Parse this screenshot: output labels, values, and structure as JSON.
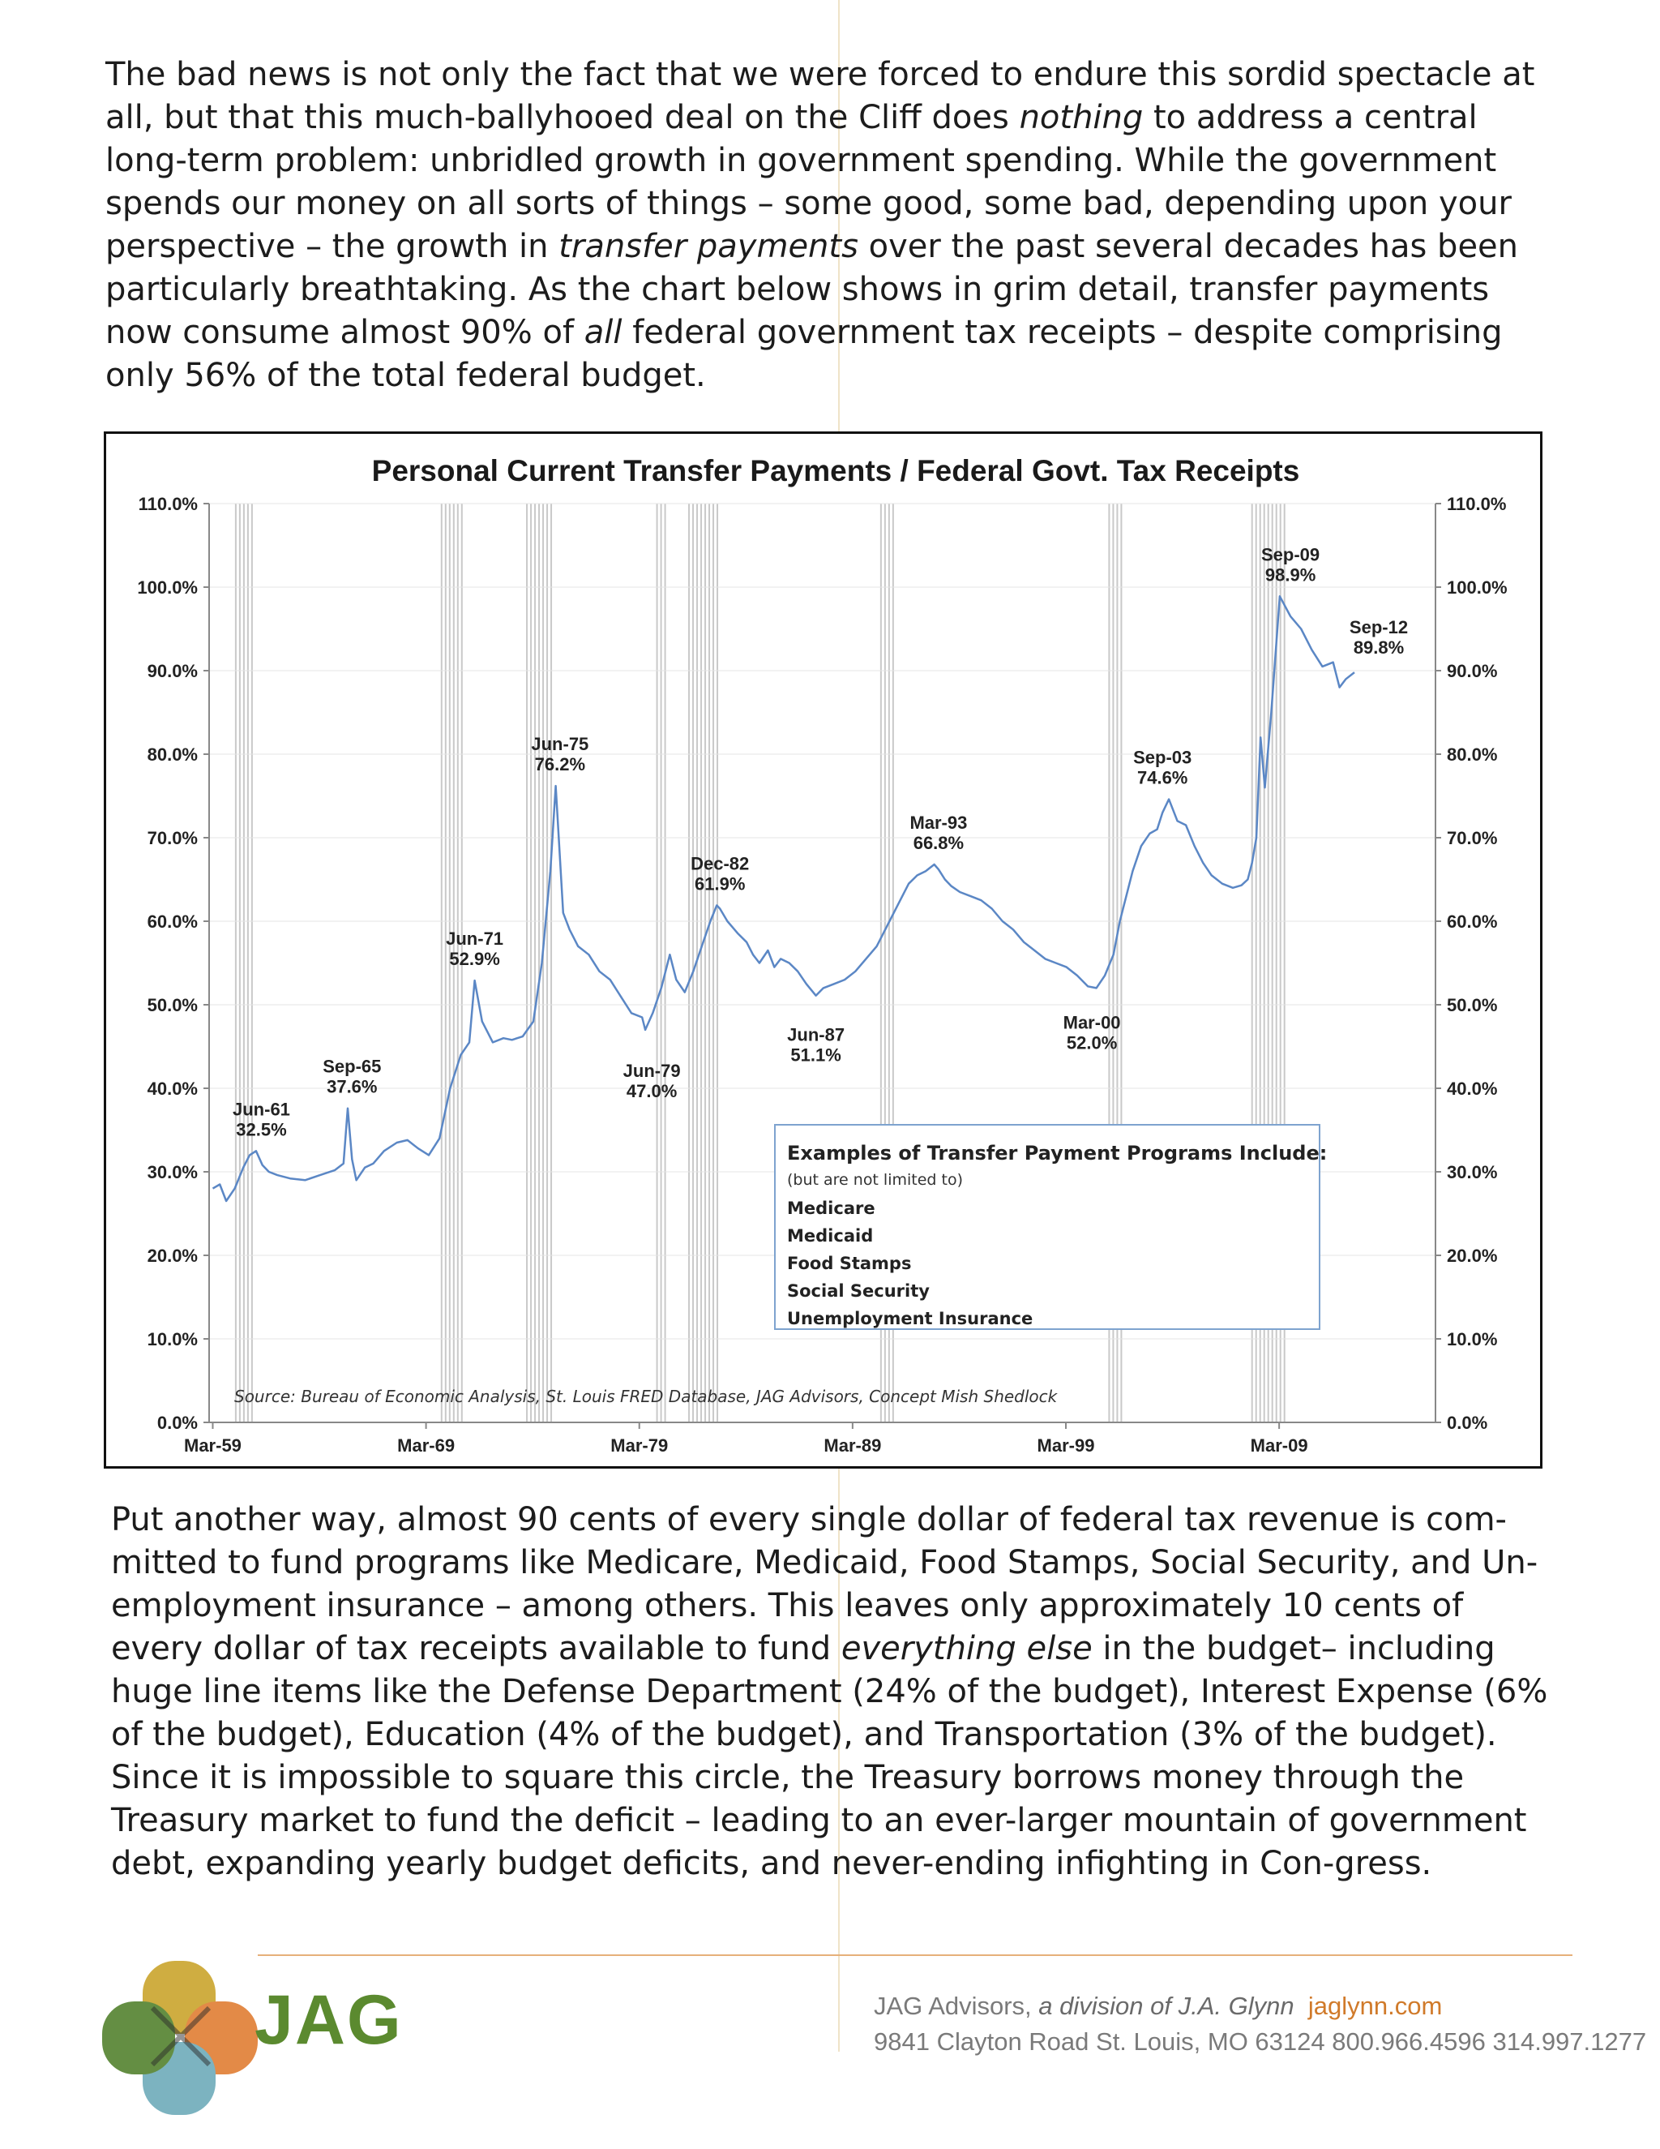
{
  "paragraph1": {
    "s1": "The bad news is not only the fact that we were forced to endure this sordid spectacle at all, but that this much-ballyhooed deal on the Cliff does ",
    "e1": "nothing",
    "s2": " to address a central long-term problem: unbridled growth in government spending.   While the government spends our money on all sorts of things – some good, some bad, depending upon your perspective – the growth in ",
    "e2": "transfer payments",
    "s3": " over the past several decades has been particularly breathtaking.  As the chart below shows in grim detail, transfer payments now consume almost 90% of ",
    "e3": "all",
    "s4": " federal government tax receipts – despite comprising only 56% of the total federal budget."
  },
  "paragraph2": {
    "s1": "Put another way, almost 90 cents of every single dollar of federal tax revenue is com-mitted to fund programs like Medicare, Medicaid, Food Stamps, Social Security, and Un-employment insurance – among others.  This leaves only approximately 10 cents of every dollar of tax receipts available to fund ",
    "e1": "everything else",
    "s2": " in the budget– including huge line items like the Defense Department (24% of the budget), Interest Expense (6% of the budget),  Education (4% of the budget),  and Transportation (3% of the budget).  Since it is impossible to square this circle, the Treasury borrows money through the Treasury market to fund the deficit – leading to an ever-larger mountain of government debt, expanding yearly budget deficits, and never-ending infighting in Con-gress."
  },
  "chart_data": {
    "type": "line",
    "title": "Personal Current Transfer Payments / Federal Govt. Tax Receipts",
    "xlabel": "",
    "ylabel": "",
    "ylim": [
      0,
      110
    ],
    "yticks": [
      "0.0%",
      "10.0%",
      "20.0%",
      "30.0%",
      "40.0%",
      "50.0%",
      "60.0%",
      "70.0%",
      "80.0%",
      "90.0%",
      "100.0%",
      "110.0%"
    ],
    "xticks": [
      {
        "label": "Mar-59",
        "x": 1959.17
      },
      {
        "label": "Mar-69",
        "x": 1969.17
      },
      {
        "label": "Mar-79",
        "x": 1979.17
      },
      {
        "label": "Mar-89",
        "x": 1989.17
      },
      {
        "label": "Mar-99",
        "x": 1999.17
      },
      {
        "label": "Mar-09",
        "x": 2009.17
      }
    ],
    "xlim": [
      1959.0,
      2016.5
    ],
    "grid": true,
    "line_color": "#5b87c5",
    "recession_color": "#c9c9c9",
    "recessions": [
      [
        1960.25,
        1961.1
      ],
      [
        1969.9,
        1970.9
      ],
      [
        1973.9,
        1975.2
      ],
      [
        1980.0,
        1980.5
      ],
      [
        1981.5,
        1982.9
      ],
      [
        1990.5,
        1991.2
      ],
      [
        2001.2,
        2001.9
      ],
      [
        2007.9,
        2009.5
      ]
    ],
    "series": [
      {
        "name": "",
        "x": [
          1959.17,
          1959.5,
          1959.8,
          1960.2,
          1960.6,
          1960.9,
          1961.2,
          1961.5,
          1961.8,
          1962.2,
          1962.8,
          1963.5,
          1964.2,
          1964.9,
          1965.3,
          1965.5,
          1965.7,
          1965.9,
          1966.3,
          1966.7,
          1967.2,
          1967.8,
          1968.3,
          1968.8,
          1969.3,
          1969.8,
          1970.3,
          1970.8,
          1971.2,
          1971.45,
          1971.8,
          1972.3,
          1972.8,
          1973.2,
          1973.7,
          1974.2,
          1974.6,
          1975.0,
          1975.25,
          1975.6,
          1975.9,
          1976.3,
          1976.8,
          1977.3,
          1977.8,
          1978.3,
          1978.8,
          1979.3,
          1979.45,
          1979.8,
          1980.2,
          1980.6,
          1980.9,
          1981.3,
          1981.7,
          1982.1,
          1982.5,
          1982.8,
          1982.95,
          1983.3,
          1983.8,
          1984.2,
          1984.5,
          1984.8,
          1985.2,
          1985.5,
          1985.8,
          1986.2,
          1986.6,
          1987.0,
          1987.45,
          1987.8,
          1988.3,
          1988.8,
          1989.3,
          1989.8,
          1990.3,
          1990.8,
          1991.3,
          1991.8,
          1992.2,
          1992.6,
          1993.0,
          1993.2,
          1993.5,
          1993.8,
          1994.2,
          1994.7,
          1995.2,
          1995.7,
          1996.2,
          1996.7,
          1997.2,
          1997.7,
          1998.2,
          1998.7,
          1999.2,
          1999.7,
          2000.2,
          2000.6,
          2001.0,
          2001.4,
          2001.7,
          2002.0,
          2002.3,
          2002.7,
          2003.1,
          2003.45,
          2003.7,
          2004.0,
          2004.4,
          2004.8,
          2005.2,
          2005.6,
          2006.0,
          2006.5,
          2007.0,
          2007.4,
          2007.7,
          2007.9,
          2008.1,
          2008.3,
          2008.5,
          2008.8,
          2009.2,
          2009.7,
          2010.2,
          2010.7,
          2011.2,
          2011.7,
          2012.0,
          2012.3,
          2012.7
        ],
        "values": [
          28.0,
          28.5,
          26.5,
          28.0,
          30.5,
          32.0,
          32.5,
          30.8,
          30.0,
          29.6,
          29.2,
          29.0,
          29.6,
          30.2,
          31.0,
          37.6,
          31.5,
          29.0,
          30.5,
          31.0,
          32.5,
          33.5,
          33.8,
          32.8,
          32.0,
          34.0,
          40.0,
          44.0,
          45.5,
          52.9,
          48.0,
          45.5,
          46.0,
          45.8,
          46.2,
          48.0,
          55.0,
          66.0,
          76.2,
          61.0,
          59.0,
          57.0,
          56.0,
          54.0,
          53.0,
          51.0,
          49.0,
          48.5,
          47.0,
          49.0,
          52.0,
          56.0,
          53.0,
          51.5,
          54.0,
          57.0,
          60.0,
          61.9,
          61.5,
          60.0,
          58.5,
          57.5,
          56.0,
          55.0,
          56.5,
          54.5,
          55.5,
          55.0,
          54.0,
          52.5,
          51.1,
          52.0,
          52.5,
          53.0,
          54.0,
          55.5,
          57.0,
          59.5,
          62.0,
          64.5,
          65.5,
          66.0,
          66.8,
          66.2,
          65.0,
          64.2,
          63.5,
          63.0,
          62.5,
          61.5,
          60.0,
          59.0,
          57.5,
          56.5,
          55.5,
          55.0,
          54.5,
          53.5,
          52.2,
          52.0,
          53.5,
          56.0,
          60.0,
          63.0,
          66.0,
          69.0,
          70.5,
          71.0,
          73.0,
          74.6,
          72.0,
          71.5,
          69.0,
          67.0,
          65.5,
          64.5,
          64.0,
          64.3,
          65.0,
          67.0,
          70.0,
          82.0,
          76.0,
          85.0,
          98.9,
          96.5,
          95.0,
          92.5,
          90.5,
          91.0,
          88.0,
          89.0,
          89.8
        ]
      }
    ],
    "annotations": [
      {
        "label": "Jun-61",
        "value": "32.5%",
        "x": 1961.45,
        "y": 32.5
      },
      {
        "label": "Sep-65",
        "value": "37.6%",
        "x": 1965.7,
        "y": 37.6
      },
      {
        "label": "Jun-71",
        "value": "52.9%",
        "x": 1971.45,
        "y": 52.9
      },
      {
        "label": "Jun-75",
        "value": "76.2%",
        "x": 1975.45,
        "y": 76.2
      },
      {
        "label": "Jun-79",
        "value": "47.0%",
        "x": 1979.45,
        "y": 47.0
      },
      {
        "label": "Dec-82",
        "value": "61.9%",
        "x": 1982.95,
        "y": 61.9
      },
      {
        "label": "Jun-87",
        "value": "51.1%",
        "x": 1987.45,
        "y": 51.1
      },
      {
        "label": "Mar-93",
        "value": "66.8%",
        "x": 1993.2,
        "y": 66.8
      },
      {
        "label": "Mar-00",
        "value": "52.0%",
        "x": 2000.2,
        "y": 52.0
      },
      {
        "label": "Sep-03",
        "value": "74.6%",
        "x": 2003.7,
        "y": 74.6
      },
      {
        "label": "Sep-09",
        "value": "98.9%",
        "x": 2009.7,
        "y": 98.9
      },
      {
        "label": "Sep-12",
        "value": "89.8%",
        "x": 2012.7,
        "y": 89.8
      }
    ],
    "legend_box": {
      "heading": "Examples of Transfer Payment Programs Include:",
      "subheading": "(but are not limited to)",
      "items": [
        "Medicare",
        "Medicaid",
        "Food Stamps",
        "Social Security",
        "Unemployment Insurance"
      ]
    },
    "source": "Source: Bureau of Economic Analysis, St. Louis FRED Database, JAG Advisors, Concept Mish Shedlock"
  },
  "footer": {
    "brand": "JAG",
    "company": "JAG Advisors,",
    "division": " a division of J.A. Glynn",
    "url": "jaglynn.com",
    "address": "9841 Clayton Road  St. Louis, MO 63124  800.966.4596  314.997.1277"
  }
}
